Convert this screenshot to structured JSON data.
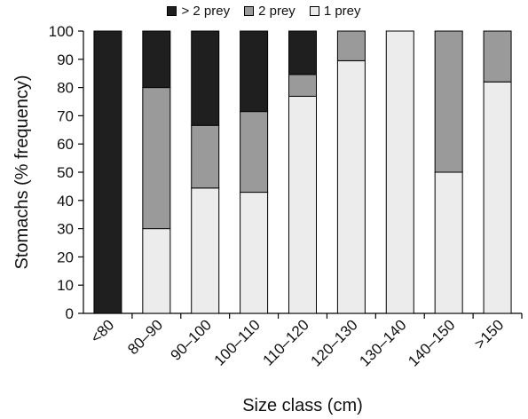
{
  "chart_data": {
    "type": "bar",
    "stacked": true,
    "title": "",
    "xlabel": "Size class (cm)",
    "ylabel": "Stomachs (% frequency)",
    "ylim": [
      0,
      100
    ],
    "yticks": [
      0,
      10,
      20,
      30,
      40,
      50,
      60,
      70,
      80,
      90,
      100
    ],
    "grid": false,
    "legend_position": "top",
    "categories": [
      "<80",
      "80–90",
      "90–100",
      "100–110",
      "110–120",
      "120–130",
      "130–140",
      "140–150",
      ">150"
    ],
    "series": [
      {
        "name": "1 prey",
        "color": "#ececec",
        "values": [
          0,
          30,
          44.4,
          42.9,
          76.9,
          89.5,
          100,
          50,
          82
        ]
      },
      {
        "name": "2 prey",
        "color": "#9a9a9a",
        "values": [
          0,
          50,
          22.2,
          28.6,
          7.7,
          10.5,
          0,
          50,
          18
        ]
      },
      {
        "name": "> 2 prey",
        "color": "#1f1f1f",
        "values": [
          100,
          20,
          33.4,
          28.5,
          15.4,
          0,
          0,
          0,
          0
        ]
      }
    ]
  }
}
